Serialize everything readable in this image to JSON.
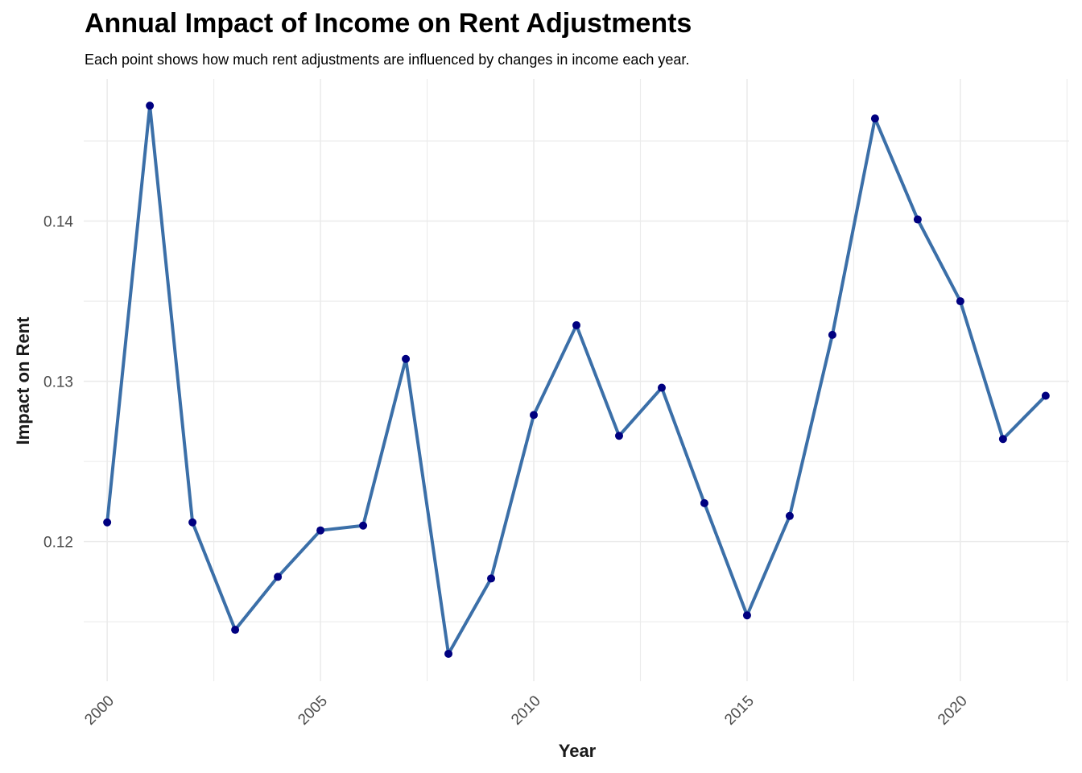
{
  "title": "Annual Impact of Income on Rent Adjustments",
  "subtitle": "Each point shows how much rent adjustments are influenced by changes in income each year.",
  "chart_data": {
    "type": "line",
    "title": "Annual Impact of Income on Rent Adjustments",
    "subtitle": "Each point shows how much rent adjustments are influenced by changes in income each year.",
    "xlabel": "Year",
    "ylabel": "Impact on Rent",
    "x": [
      2000,
      2001,
      2002,
      2003,
      2004,
      2005,
      2006,
      2007,
      2008,
      2009,
      2010,
      2011,
      2012,
      2013,
      2014,
      2015,
      2016,
      2017,
      2018,
      2019,
      2020,
      2021,
      2022
    ],
    "series": [
      {
        "values": [
          0.1212,
          0.1472,
          0.1212,
          0.1145,
          0.1178,
          0.1207,
          0.121,
          0.1314,
          0.113,
          0.1177,
          0.1279,
          0.1335,
          0.1266,
          0.1296,
          0.1224,
          0.1154,
          0.1216,
          0.1329,
          0.1464,
          0.1401,
          0.135,
          0.1264,
          0.1291
        ]
      }
    ],
    "x_ticks": [
      "2000",
      "2005",
      "2010",
      "2015",
      "2020"
    ],
    "x_tick_values": [
      2000,
      2005,
      2010,
      2015,
      2020
    ],
    "y_ticks": [
      "0.12",
      "0.13",
      "0.14"
    ],
    "y_tick_values": [
      0.12,
      0.13,
      0.14
    ],
    "xlim": [
      1999.45,
      2022.55
    ],
    "ylim": [
      0.11129,
      0.14887
    ],
    "grid": true,
    "line_color": "#3B6FA8",
    "point_color": "#000080"
  }
}
